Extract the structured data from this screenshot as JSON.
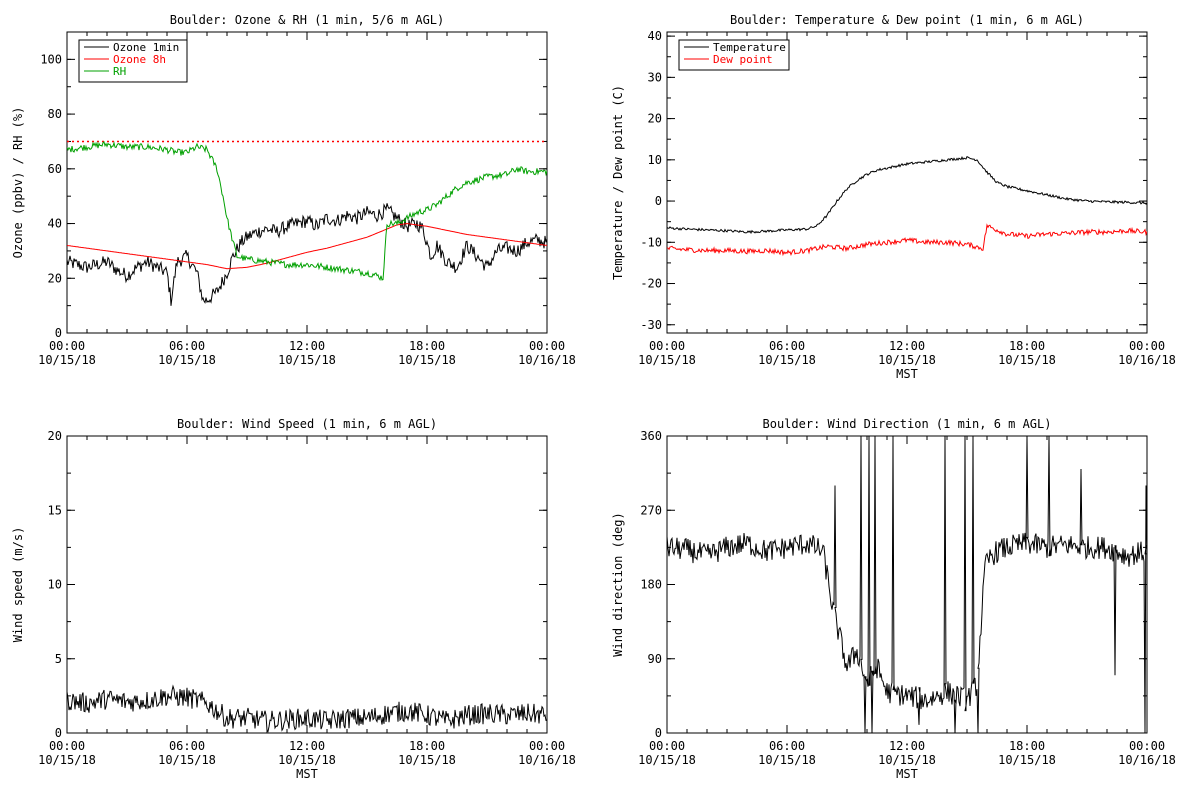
{
  "chart_data": [
    {
      "type": "line",
      "title": "Boulder: Ozone & RH (1 min, 5/6 m AGL)",
      "ylabel": "Ozone (ppbv) / RH (%)",
      "xlabel": "",
      "xlim": [
        0,
        24
      ],
      "ylim": [
        0,
        110
      ],
      "yticks": [
        0,
        20,
        40,
        60,
        80,
        100
      ],
      "xtick_labels": [
        [
          "00:00",
          "10/15/18"
        ],
        [
          "06:00",
          "10/15/18"
        ],
        [
          "12:00",
          "10/15/18"
        ],
        [
          "18:00",
          "10/15/18"
        ],
        [
          "00:00",
          "10/16/18"
        ]
      ],
      "legend": {
        "position": "top-left",
        "entries": [
          "Ozone 1min",
          "Ozone 8h",
          "RH"
        ]
      },
      "hline": {
        "y": 70,
        "color": "#ff0000",
        "style": "dotted"
      },
      "series": [
        {
          "name": "Ozone 1min",
          "color": "#000000",
          "noise": 2.5,
          "x": [
            0,
            0.5,
            1,
            1.5,
            2,
            2.5,
            3,
            3.5,
            4,
            4.5,
            5,
            5.2,
            5.5,
            6,
            6.5,
            6.8,
            7,
            7.5,
            8,
            8.3,
            8.7,
            9,
            9.5,
            10,
            10.5,
            11,
            11.5,
            12,
            12.5,
            13,
            13.5,
            14,
            14.5,
            15,
            15.5,
            16,
            16.5,
            17,
            17.5,
            17.8,
            18,
            18.2,
            18.5,
            19,
            19.5,
            20,
            20.5,
            21,
            21.5,
            22,
            22.5,
            23,
            23.5,
            24
          ],
          "y": [
            26,
            25,
            24,
            25,
            26,
            23,
            21,
            24,
            26,
            24,
            22,
            12,
            26,
            28,
            22,
            12,
            12,
            15,
            22,
            28,
            33,
            35,
            37,
            38,
            37,
            39,
            40,
            41,
            39,
            42,
            41,
            43,
            42,
            44,
            43,
            45,
            42,
            39,
            40,
            38,
            33,
            28,
            32,
            26,
            24,
            32,
            28,
            24,
            30,
            31,
            30,
            33,
            34,
            33
          ]
        },
        {
          "name": "Ozone 8h",
          "color": "#ff0000",
          "noise": 0,
          "x": [
            0,
            2,
            4,
            6,
            7,
            8,
            9,
            10,
            11,
            12,
            13,
            14,
            15,
            15.5,
            16,
            16.5,
            17,
            18,
            19,
            20,
            21,
            22,
            23,
            24
          ],
          "y": [
            32,
            30,
            28,
            26,
            25,
            23.5,
            24,
            25.5,
            27.5,
            29.5,
            31,
            33,
            35,
            36.5,
            38,
            39.5,
            40,
            39,
            37.5,
            36,
            35,
            34,
            33,
            32
          ]
        },
        {
          "name": "RH",
          "color": "#00a000",
          "noise": 1.2,
          "x": [
            0,
            1,
            2,
            3,
            4,
            5,
            5.5,
            6,
            6.5,
            7,
            7.5,
            7.8,
            8,
            8.2,
            8.5,
            9,
            10,
            11,
            12,
            13,
            14,
            15,
            15.5,
            15.8,
            16,
            16.5,
            17,
            17.5,
            18,
            18.5,
            19,
            19.5,
            20,
            21,
            22,
            22.5,
            23,
            24
          ],
          "y": [
            67,
            68,
            69,
            68,
            68,
            67,
            66,
            66,
            68,
            67,
            60,
            50,
            42,
            36,
            28,
            27,
            26,
            25,
            25,
            24,
            23,
            22,
            21,
            20,
            40,
            40,
            42,
            44,
            45,
            47,
            50,
            53,
            55,
            57,
            58,
            60,
            59,
            59
          ]
        }
      ]
    },
    {
      "type": "line",
      "title": "Boulder: Temperature & Dew point (1 min, 6 m AGL)",
      "ylabel": "Temperature / Dew point (C)",
      "xlabel": "MST",
      "xlim": [
        0,
        24
      ],
      "ylim": [
        -32,
        41
      ],
      "yticks": [
        -30,
        -20,
        -10,
        0,
        10,
        20,
        30,
        40
      ],
      "xtick_labels": [
        [
          "00:00",
          "10/15/18"
        ],
        [
          "06:00",
          "10/15/18"
        ],
        [
          "12:00",
          "10/15/18"
        ],
        [
          "18:00",
          "10/15/18"
        ],
        [
          "00:00",
          "10/16/18"
        ]
      ],
      "legend": {
        "position": "top-left",
        "entries": [
          "Temperature",
          "Dew point"
        ]
      },
      "series": [
        {
          "name": "Temperature",
          "color": "#000000",
          "noise": 0.3,
          "x": [
            0,
            1,
            2,
            3,
            4,
            5,
            6,
            7,
            7.5,
            8,
            8.5,
            9,
            9.5,
            10,
            10.5,
            11,
            12,
            13,
            14,
            15,
            15.5,
            16,
            16.5,
            17,
            18,
            19,
            20,
            21,
            22,
            23,
            24
          ],
          "y": [
            -6.5,
            -6.8,
            -7,
            -7.2,
            -7.5,
            -7.3,
            -7,
            -6.8,
            -6,
            -3.5,
            0,
            3,
            5,
            6.5,
            7.5,
            8,
            9,
            9.5,
            10,
            10.5,
            10,
            7,
            4.5,
            3.5,
            2.5,
            1.5,
            0.5,
            0,
            -0.2,
            -0.3,
            -0.5
          ]
        },
        {
          "name": "Dew point",
          "color": "#ff0000",
          "noise": 0.6,
          "x": [
            0,
            1,
            2,
            3,
            4,
            5,
            6,
            7,
            8,
            9,
            10,
            11,
            12,
            13,
            14,
            15,
            15.8,
            16,
            17,
            18,
            19,
            20,
            21,
            22,
            23,
            24
          ],
          "y": [
            -11.5,
            -11.8,
            -12,
            -12,
            -12.2,
            -12,
            -12.5,
            -12,
            -11,
            -11.5,
            -10.5,
            -10,
            -9.5,
            -10,
            -10,
            -10.5,
            -11.5,
            -6,
            -8,
            -8.5,
            -8,
            -7.8,
            -7.5,
            -7.5,
            -7.2,
            -7.5
          ]
        }
      ]
    },
    {
      "type": "line",
      "title": "Boulder: Wind Speed (1 min, 6 m AGL)",
      "ylabel": "Wind speed (m/s)",
      "xlabel": "MST",
      "xlim": [
        0,
        24
      ],
      "ylim": [
        0,
        20
      ],
      "yticks": [
        0,
        5,
        10,
        15,
        20
      ],
      "xtick_labels": [
        [
          "00:00",
          "10/15/18"
        ],
        [
          "06:00",
          "10/15/18"
        ],
        [
          "12:00",
          "10/15/18"
        ],
        [
          "18:00",
          "10/15/18"
        ],
        [
          "00:00",
          "10/16/18"
        ]
      ],
      "series": [
        {
          "name": "",
          "color": "#000000",
          "noise": 0.7,
          "floor": 0,
          "x": [
            0,
            1,
            2,
            3,
            4,
            5,
            6,
            7,
            8,
            9,
            10,
            11,
            12,
            13,
            14,
            15,
            16,
            17,
            18,
            19,
            20,
            21,
            22,
            23,
            24
          ],
          "y": [
            2.2,
            2,
            2.3,
            2.1,
            2.2,
            2.5,
            2.4,
            2,
            1,
            1,
            0.8,
            0.9,
            1,
            0.8,
            1,
            1,
            1.3,
            1.5,
            1.2,
            0.8,
            1.2,
            1.3,
            1.2,
            1.3,
            1.2
          ]
        }
      ]
    },
    {
      "type": "line",
      "title": "Boulder: Wind Direction (1 min, 6 m AGL)",
      "ylabel": "Wind direction (deg)",
      "xlabel": "MST",
      "xlim": [
        0,
        24
      ],
      "ylim": [
        0,
        360
      ],
      "yticks": [
        0,
        90,
        180,
        270,
        360
      ],
      "xtick_labels": [
        [
          "00:00",
          "10/15/18"
        ],
        [
          "06:00",
          "10/15/18"
        ],
        [
          "12:00",
          "10/15/18"
        ],
        [
          "18:00",
          "10/15/18"
        ],
        [
          "00:00",
          "10/16/18"
        ]
      ],
      "series": [
        {
          "name": "",
          "color": "#000000",
          "noise": 14,
          "floor": 0,
          "ceil": 360,
          "x": [
            0,
            1,
            2,
            3,
            4,
            5,
            6,
            7,
            7.8,
            8.3,
            9,
            9.5,
            10,
            10.5,
            11,
            12,
            13,
            14,
            15,
            15.5,
            15.9,
            16.2,
            16.5,
            17,
            18,
            19,
            20,
            21,
            22,
            23,
            24
          ],
          "y": [
            225,
            222,
            215,
            225,
            230,
            220,
            225,
            230,
            220,
            150,
            80,
            100,
            60,
            80,
            50,
            45,
            40,
            50,
            40,
            60,
            200,
            215,
            220,
            225,
            230,
            225,
            228,
            225,
            225,
            215,
            220
          ],
          "spikes": [
            [
              8.4,
              300
            ],
            [
              9.7,
              360
            ],
            [
              9.9,
              0
            ],
            [
              10.1,
              360
            ],
            [
              10.25,
              0
            ],
            [
              10.4,
              360
            ],
            [
              11.3,
              360
            ],
            [
              12.6,
              10
            ],
            [
              13.9,
              360
            ],
            [
              14.4,
              0
            ],
            [
              14.9,
              360
            ],
            [
              15.3,
              360
            ],
            [
              15.55,
              0
            ],
            [
              18.0,
              360
            ],
            [
              19.1,
              360
            ],
            [
              20.7,
              320
            ],
            [
              22.4,
              70
            ],
            [
              23.9,
              0
            ],
            [
              23.95,
              300
            ]
          ]
        }
      ]
    }
  ]
}
